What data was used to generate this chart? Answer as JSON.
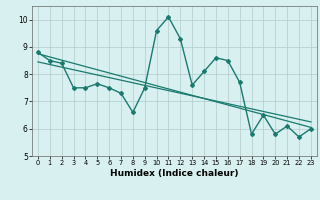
{
  "xlabel": "Humidex (Indice chaleur)",
  "x": [
    0,
    1,
    2,
    3,
    4,
    5,
    6,
    7,
    8,
    9,
    10,
    11,
    12,
    13,
    14,
    15,
    16,
    17,
    18,
    19,
    20,
    21,
    22,
    23
  ],
  "line1": [
    8.8,
    8.5,
    8.4,
    7.5,
    7.5,
    7.65,
    7.5,
    7.3,
    6.6,
    7.5,
    9.6,
    10.1,
    9.3,
    7.6,
    8.1,
    8.6,
    8.5,
    7.7,
    5.8,
    6.5,
    5.8,
    6.1,
    5.7,
    6.0
  ],
  "line2_x": [
    0,
    23
  ],
  "line2_y": [
    8.75,
    6.05
  ],
  "line3_x": [
    0,
    23
  ],
  "line3_y": [
    8.45,
    6.25
  ],
  "ylim": [
    5,
    10.5
  ],
  "xlim": [
    -0.5,
    23.5
  ],
  "yticks": [
    5,
    6,
    7,
    8,
    9,
    10
  ],
  "xticks": [
    0,
    1,
    2,
    3,
    4,
    5,
    6,
    7,
    8,
    9,
    10,
    11,
    12,
    13,
    14,
    15,
    16,
    17,
    18,
    19,
    20,
    21,
    22,
    23
  ],
  "line_color": "#1a7a6e",
  "bg_color": "#d8f0f0",
  "grid_color": "#b0cccc"
}
